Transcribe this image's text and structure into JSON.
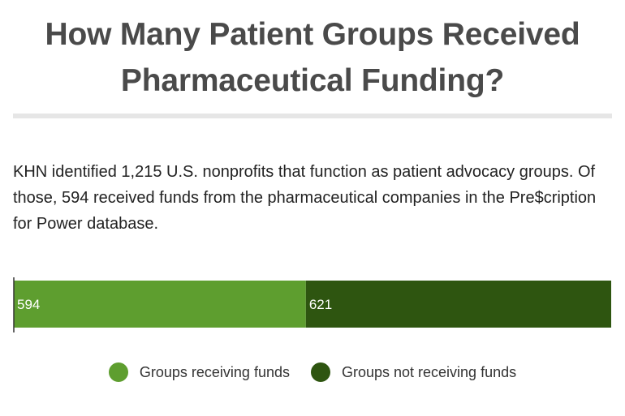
{
  "header": {
    "title_line1": "How Many Patient Groups Received",
    "title_line2": "Pharmaceutical Funding?"
  },
  "description": "KHN identified 1,215 U.S. nonprofits that function as patient advocacy groups. Of those, 594 received funds from the pharmaceutical companies in the Pre$cription for Power database.",
  "chart_data": {
    "type": "bar",
    "orientation": "horizontal",
    "stacked": true,
    "title": "How Many Patient Groups Received Pharmaceutical Funding?",
    "series": [
      {
        "name": "Groups receiving funds",
        "value": 594,
        "label": "594",
        "color": "#5e9e2f"
      },
      {
        "name": "Groups not receiving funds",
        "value": 621,
        "label": "621",
        "color": "#2e5510"
      }
    ],
    "total": 1215,
    "legend_position": "bottom",
    "grid": false
  }
}
